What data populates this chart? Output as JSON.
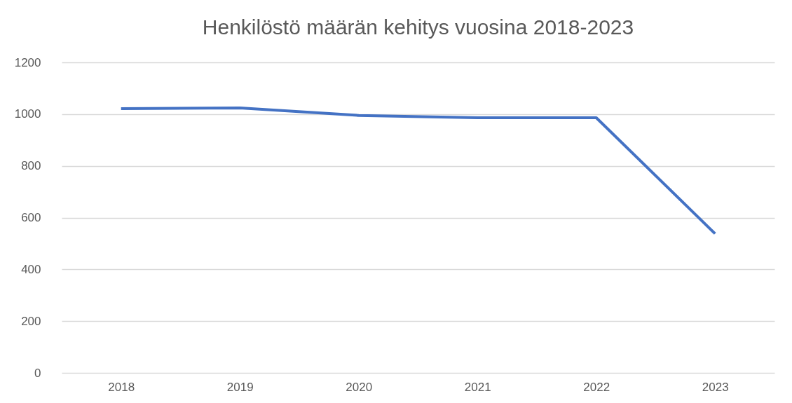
{
  "chart_data": {
    "type": "line",
    "title": "Henkilöstö määrän kehitys vuosina 2018-2023",
    "categories": [
      "2018",
      "2019",
      "2020",
      "2021",
      "2022",
      "2023"
    ],
    "series": [
      {
        "color": "#4472c4",
        "values": [
          1021,
          1024,
          995,
          986,
          986,
          538
        ]
      }
    ],
    "ylim": [
      0,
      1200
    ],
    "yticks": [
      0,
      200,
      400,
      600,
      800,
      1000,
      1200
    ],
    "grid": "y",
    "legend": false,
    "marker": "none",
    "line_style": "solid"
  }
}
